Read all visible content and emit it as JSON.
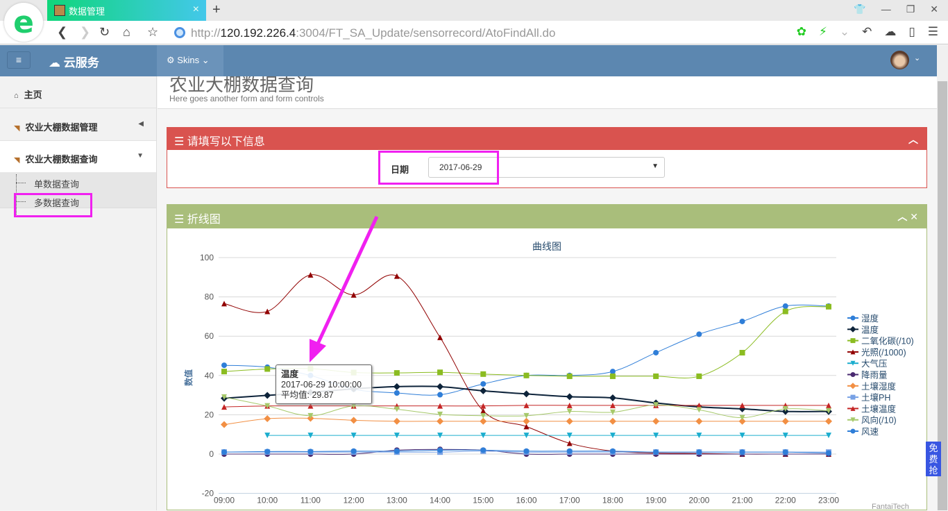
{
  "browser": {
    "tab_title": "数据管理",
    "url_host": "120.192.226.4",
    "url_scheme": "http://",
    "url_rest": ":3004/FT_SA_Update/sensorrecord/AtoFindAll.do",
    "new_tab": "+",
    "tab_close": "×",
    "logo": "e"
  },
  "app": {
    "brand": "云服务",
    "skins_label": "Skins",
    "menu_icon": "≡"
  },
  "sidebar": {
    "items": [
      {
        "label": "主页",
        "icon": "home-icon"
      },
      {
        "label": "农业大棚数据管理",
        "icon": "rss-icon"
      },
      {
        "label": "农业大棚数据查询",
        "icon": "rss-icon"
      }
    ],
    "subitems": [
      {
        "label": "单数据查询"
      },
      {
        "label": "多数据查询"
      }
    ]
  },
  "page": {
    "title": "农业大棚数据查询",
    "subtitle": "Here goes another form and form controls"
  },
  "form_panel": {
    "title": "请填写以下信息",
    "date_label": "日期",
    "date_value": "2017-06-29"
  },
  "chart_panel": {
    "title": "折线图"
  },
  "tooltip": {
    "series": "温度",
    "time": "2017-06-29 10:00:00",
    "label": "平均值:",
    "value": "29.87"
  },
  "credit": "FantaiTech",
  "ad_badge": "免费抢",
  "chart_data": {
    "type": "line",
    "title": "曲线图",
    "xlabel": "",
    "ylabel": "数值",
    "ylim": [
      -20,
      100
    ],
    "yticks": [
      -20,
      0,
      20,
      40,
      60,
      80,
      100
    ],
    "grid": true,
    "legend": "right",
    "categories": [
      "09:00",
      "10:00",
      "11:00",
      "12:00",
      "13:00",
      "14:00",
      "15:00",
      "16:00",
      "17:00",
      "18:00",
      "19:00",
      "20:00",
      "21:00",
      "22:00",
      "23:00"
    ],
    "series": [
      {
        "name": "湿度",
        "color": "#2f7ed8",
        "marker": "circle",
        "values": [
          45.2,
          44.2,
          40,
          33,
          31.1,
          30.2,
          35.7,
          40,
          40,
          42,
          51.6,
          61,
          67.5,
          75.3,
          75.3
        ]
      },
      {
        "name": "温度",
        "color": "#0d233a",
        "marker": "diamond",
        "values": [
          28.4,
          29.87,
          31.4,
          33.2,
          34.3,
          34.3,
          32.2,
          30.6,
          29.2,
          28.6,
          26,
          24,
          23,
          21.7,
          21.7
        ]
      },
      {
        "name": "二氧化碳(/10)",
        "color": "#8bbc21",
        "marker": "square",
        "values": [
          42,
          43.3,
          43.5,
          41.5,
          41.3,
          41.6,
          40.7,
          40,
          39.6,
          39.6,
          39.6,
          39.6,
          51.6,
          72.6,
          75
        ]
      },
      {
        "name": "光照(/1000)",
        "color": "#910000",
        "marker": "triangle",
        "values": [
          76.6,
          72.6,
          91.2,
          81,
          90.6,
          59.4,
          22,
          14,
          5.5,
          1.5,
          0.5,
          0.3,
          0,
          0,
          0
        ]
      },
      {
        "name": "大气压",
        "color": "#1aadce",
        "marker": "triangle-down",
        "values": [
          null,
          9.5,
          9.5,
          9.5,
          9.5,
          9.5,
          9.5,
          9.5,
          9.5,
          9.5,
          9.5,
          9.5,
          9.5,
          9.5,
          9.5
        ]
      },
      {
        "name": "降雨量",
        "color": "#492970",
        "marker": "circle",
        "values": [
          0,
          0,
          0,
          0,
          2,
          2.4,
          2,
          0,
          0,
          0,
          0,
          0,
          0,
          0,
          0
        ]
      },
      {
        "name": "土壤湿度",
        "color": "#f28f43",
        "marker": "diamond",
        "values": [
          15,
          18,
          18.2,
          17.2,
          16.7,
          16.7,
          16.7,
          16.7,
          16.7,
          16.7,
          16.7,
          16.7,
          16.7,
          16.7,
          16.7
        ]
      },
      {
        "name": "土壤PH",
        "color": "#77a1e5",
        "marker": "square",
        "values": [
          1,
          1,
          1,
          1,
          1,
          1,
          1.5,
          1,
          1,
          1,
          1,
          1,
          1,
          1,
          1
        ]
      },
      {
        "name": "土壤温度",
        "color": "#c42525",
        "marker": "triangle",
        "values": [
          24,
          24.5,
          24.5,
          24.5,
          24.5,
          24.5,
          24.5,
          24.8,
          24.8,
          24.8,
          24.8,
          24.8,
          24.8,
          24.8,
          24.8
        ]
      },
      {
        "name": "风向(/10)",
        "color": "#a6c96a",
        "marker": "triangle-down",
        "values": [
          29,
          24.5,
          19.5,
          24.5,
          22.8,
          20.2,
          19.5,
          19.5,
          21.7,
          21.3,
          25,
          22.5,
          18.5,
          23,
          22
        ]
      },
      {
        "name": "风速",
        "color": "#2f7ed8",
        "marker": "circle",
        "values": [
          1,
          1.3,
          1.3,
          1.5,
          1.5,
          2,
          2,
          1.5,
          1.5,
          1.5,
          1,
          1,
          1,
          1,
          0.5
        ]
      }
    ]
  }
}
